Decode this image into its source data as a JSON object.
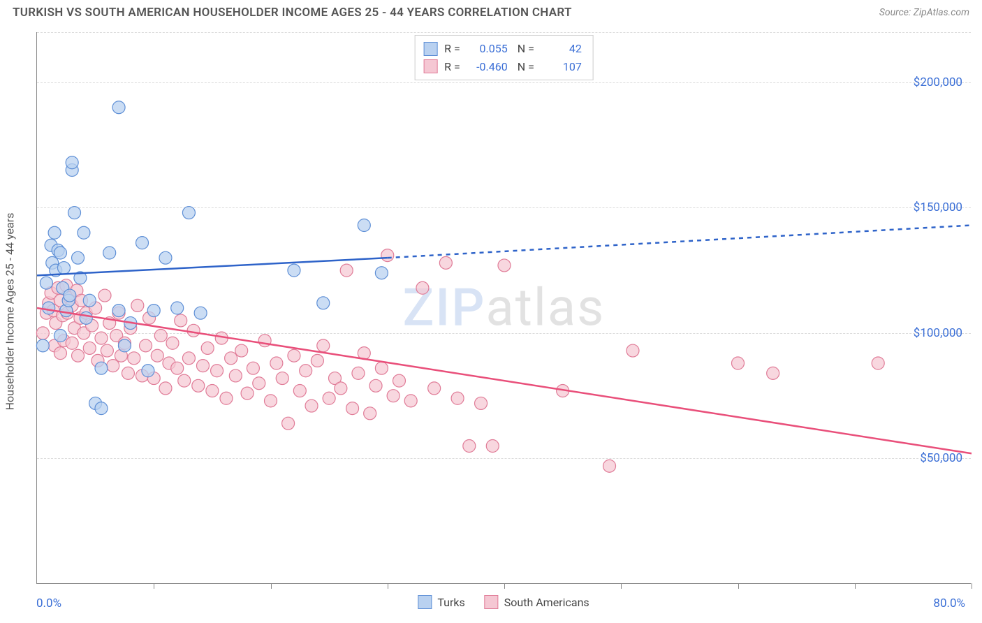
{
  "header": {
    "title": "TURKISH VS SOUTH AMERICAN HOUSEHOLDER INCOME AGES 25 - 44 YEARS CORRELATION CHART",
    "source": "Source: ZipAtlas.com"
  },
  "chart": {
    "type": "scatter",
    "y_axis_label": "Householder Income Ages 25 - 44 years",
    "xlim": [
      0,
      80
    ],
    "ylim": [
      0,
      220000
    ],
    "x_min_label": "0.0%",
    "x_max_label": "80.0%",
    "x_tick_positions": [
      0,
      10,
      20,
      30,
      40,
      50,
      60,
      70,
      80
    ],
    "y_ticks": [
      {
        "v": 50000,
        "label": "$50,000"
      },
      {
        "v": 100000,
        "label": "$100,000"
      },
      {
        "v": 150000,
        "label": "$150,000"
      },
      {
        "v": 200000,
        "label": "$200,000"
      }
    ],
    "grid_color": "#dcdcdc",
    "background_color": "#ffffff",
    "axis_color": "#888888",
    "tick_label_color": "#3b6fd6",
    "watermark_text_z": "ZIP",
    "watermark_text_rest": "atlas",
    "series": [
      {
        "key": "turks",
        "label": "Turks",
        "fill": "#b9d1f0",
        "stroke": "#5e8fd6",
        "marker_radius": 9,
        "marker_opacity": 0.75,
        "trend": {
          "x1": 0,
          "y1": 123000,
          "x2_solid": 30,
          "y2_solid": 130000,
          "x2": 80,
          "y2": 143000,
          "color": "#2e63c9",
          "width": 2.5
        },
        "stats": {
          "R": "0.055",
          "N": "42"
        },
        "points": [
          [
            0.5,
            95000
          ],
          [
            0.8,
            120000
          ],
          [
            1.0,
            110000
          ],
          [
            1.2,
            135000
          ],
          [
            1.3,
            128000
          ],
          [
            1.5,
            140000
          ],
          [
            1.6,
            125000
          ],
          [
            1.8,
            133000
          ],
          [
            2.0,
            132000
          ],
          [
            2.0,
            99000
          ],
          [
            2.2,
            118000
          ],
          [
            2.3,
            126000
          ],
          [
            2.5,
            109000
          ],
          [
            2.7,
            113000
          ],
          [
            2.8,
            115000
          ],
          [
            3.0,
            165000
          ],
          [
            3.0,
            168000
          ],
          [
            3.2,
            148000
          ],
          [
            3.5,
            130000
          ],
          [
            3.7,
            122000
          ],
          [
            4.0,
            140000
          ],
          [
            4.2,
            106000
          ],
          [
            4.5,
            113000
          ],
          [
            5.0,
            72000
          ],
          [
            5.5,
            70000
          ],
          [
            5.5,
            86000
          ],
          [
            6.2,
            132000
          ],
          [
            7.0,
            109000
          ],
          [
            7.0,
            190000
          ],
          [
            7.5,
            95000
          ],
          [
            8.0,
            104000
          ],
          [
            9.0,
            136000
          ],
          [
            9.5,
            85000
          ],
          [
            10.0,
            109000
          ],
          [
            11.0,
            130000
          ],
          [
            12.0,
            110000
          ],
          [
            13.0,
            148000
          ],
          [
            14.0,
            108000
          ],
          [
            22.0,
            125000
          ],
          [
            24.5,
            112000
          ],
          [
            28.0,
            143000
          ],
          [
            29.5,
            124000
          ]
        ]
      },
      {
        "key": "south_americans",
        "label": "South Americans",
        "fill": "#f5c7d3",
        "stroke": "#e07b97",
        "marker_radius": 9,
        "marker_opacity": 0.72,
        "trend": {
          "x1": 0,
          "y1": 110000,
          "x2_solid": 80,
          "y2_solid": 52000,
          "x2": 80,
          "y2": 52000,
          "color": "#e94f7a",
          "width": 2.5
        },
        "stats": {
          "R": "-0.460",
          "N": "107"
        },
        "points": [
          [
            0.5,
            100000
          ],
          [
            0.8,
            108000
          ],
          [
            1.0,
            112000
          ],
          [
            1.2,
            116000
          ],
          [
            1.4,
            109000
          ],
          [
            1.5,
            95000
          ],
          [
            1.6,
            104000
          ],
          [
            1.8,
            118000
          ],
          [
            2.0,
            113000
          ],
          [
            2.0,
            92000
          ],
          [
            2.2,
            107000
          ],
          [
            2.3,
            97000
          ],
          [
            2.5,
            119000
          ],
          [
            2.6,
            108000
          ],
          [
            2.8,
            114000
          ],
          [
            3.0,
            96000
          ],
          [
            3.0,
            111000
          ],
          [
            3.2,
            102000
          ],
          [
            3.4,
            117000
          ],
          [
            3.5,
            91000
          ],
          [
            3.7,
            106000
          ],
          [
            3.8,
            113000
          ],
          [
            4.0,
            100000
          ],
          [
            4.2,
            108000
          ],
          [
            4.5,
            94000
          ],
          [
            4.7,
            103000
          ],
          [
            5.0,
            110000
          ],
          [
            5.2,
            89000
          ],
          [
            5.5,
            98000
          ],
          [
            5.8,
            115000
          ],
          [
            6.0,
            93000
          ],
          [
            6.2,
            104000
          ],
          [
            6.5,
            87000
          ],
          [
            6.8,
            99000
          ],
          [
            7.0,
            108000
          ],
          [
            7.2,
            91000
          ],
          [
            7.5,
            96000
          ],
          [
            7.8,
            84000
          ],
          [
            8.0,
            102000
          ],
          [
            8.3,
            90000
          ],
          [
            8.6,
            111000
          ],
          [
            9.0,
            83000
          ],
          [
            9.3,
            95000
          ],
          [
            9.6,
            106000
          ],
          [
            10.0,
            82000
          ],
          [
            10.3,
            91000
          ],
          [
            10.6,
            99000
          ],
          [
            11.0,
            78000
          ],
          [
            11.3,
            88000
          ],
          [
            11.6,
            96000
          ],
          [
            12.0,
            86000
          ],
          [
            12.3,
            105000
          ],
          [
            12.6,
            81000
          ],
          [
            13.0,
            90000
          ],
          [
            13.4,
            101000
          ],
          [
            13.8,
            79000
          ],
          [
            14.2,
            87000
          ],
          [
            14.6,
            94000
          ],
          [
            15.0,
            77000
          ],
          [
            15.4,
            85000
          ],
          [
            15.8,
            98000
          ],
          [
            16.2,
            74000
          ],
          [
            16.6,
            90000
          ],
          [
            17.0,
            83000
          ],
          [
            17.5,
            93000
          ],
          [
            18.0,
            76000
          ],
          [
            18.5,
            86000
          ],
          [
            19.0,
            80000
          ],
          [
            19.5,
            97000
          ],
          [
            20.0,
            73000
          ],
          [
            20.5,
            88000
          ],
          [
            21.0,
            82000
          ],
          [
            21.5,
            64000
          ],
          [
            22.0,
            91000
          ],
          [
            22.5,
            77000
          ],
          [
            23.0,
            85000
          ],
          [
            23.5,
            71000
          ],
          [
            24.0,
            89000
          ],
          [
            24.5,
            95000
          ],
          [
            25.0,
            74000
          ],
          [
            25.5,
            82000
          ],
          [
            26.0,
            78000
          ],
          [
            26.5,
            125000
          ],
          [
            27.0,
            70000
          ],
          [
            27.5,
            84000
          ],
          [
            28.0,
            92000
          ],
          [
            28.5,
            68000
          ],
          [
            29.0,
            79000
          ],
          [
            29.5,
            86000
          ],
          [
            30.0,
            131000
          ],
          [
            30.5,
            75000
          ],
          [
            31.0,
            81000
          ],
          [
            32.0,
            73000
          ],
          [
            33.0,
            118000
          ],
          [
            34.0,
            78000
          ],
          [
            35.0,
            128000
          ],
          [
            36.0,
            74000
          ],
          [
            37.0,
            55000
          ],
          [
            38.0,
            72000
          ],
          [
            39.0,
            55000
          ],
          [
            40.0,
            127000
          ],
          [
            45.0,
            77000
          ],
          [
            49.0,
            47000
          ],
          [
            51.0,
            93000
          ],
          [
            60.0,
            88000
          ],
          [
            63.0,
            84000
          ],
          [
            72.0,
            88000
          ]
        ]
      }
    ],
    "bottom_legend": [
      {
        "label": "Turks",
        "fill": "#b9d1f0",
        "stroke": "#5e8fd6"
      },
      {
        "label": "South Americans",
        "fill": "#f5c7d3",
        "stroke": "#e07b97"
      }
    ]
  }
}
